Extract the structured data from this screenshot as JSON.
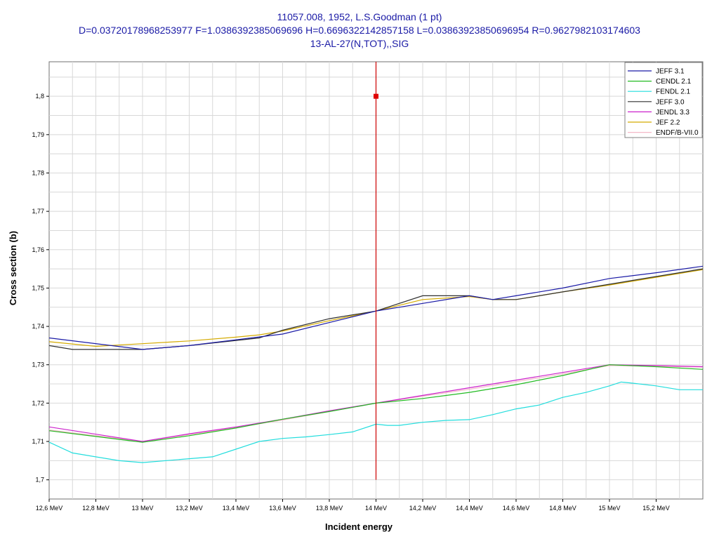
{
  "header": {
    "title": "11057.008, 1952, L.S.Goodman (1 pt)",
    "subtitle": "D=0.03720178968253977 F=1.0386392385069696 H=0.6696322142857158 L=0.03863923850696954 R=0.9627982103174603",
    "reaction": "13-AL-27(N,TOT),,SIG"
  },
  "colors": {
    "title": "#1a1aa6",
    "marker": "#e00000",
    "marker_line": "#cc0000",
    "grid": "#d8d8d8"
  },
  "chart_data": {
    "type": "line",
    "xlabel": "Incident energy",
    "ylabel": "Cross section (b)",
    "xlim": [
      12.6,
      15.4
    ],
    "ylim": [
      1.695,
      1.809
    ],
    "x_ticks": [
      12.6,
      12.8,
      13.0,
      13.2,
      13.4,
      13.6,
      13.8,
      14.0,
      14.2,
      14.4,
      14.6,
      14.8,
      15.0,
      15.2
    ],
    "x_tick_labels": [
      "12,6 MeV",
      "12,8 MeV",
      "13 MeV",
      "13,2 MeV",
      "13,4 MeV",
      "13,6 MeV",
      "13,8 MeV",
      "14 MeV",
      "14,2 MeV",
      "14,4 MeV",
      "14,6 MeV",
      "14,8 MeV",
      "15 MeV",
      "15,2 MeV"
    ],
    "y_ticks": [
      1.7,
      1.71,
      1.72,
      1.73,
      1.74,
      1.75,
      1.76,
      1.77,
      1.78,
      1.79,
      1.8
    ],
    "y_tick_labels": [
      "1,7",
      "1,71",
      "1,72",
      "1,73",
      "1,74",
      "1,75",
      "1,76",
      "1,77",
      "1,78",
      "1,79",
      "1,8"
    ],
    "grid": true,
    "legend_position": "top-right",
    "series": [
      {
        "name": "JEFF 3.1",
        "color": "#1a1aa6",
        "x": [
          12.6,
          13.0,
          13.2,
          13.4,
          13.6,
          13.8,
          14.0,
          14.2,
          14.4,
          14.5,
          14.6,
          14.8,
          15.0,
          15.2,
          15.4
        ],
        "y": [
          1.737,
          1.734,
          1.735,
          1.7365,
          1.738,
          1.741,
          1.744,
          1.746,
          1.748,
          1.747,
          1.748,
          1.75,
          1.7525,
          1.754,
          1.7557
        ]
      },
      {
        "name": "CENDL 2.1",
        "color": "#22bb22",
        "x": [
          12.6,
          13.0,
          13.2,
          13.4,
          13.6,
          13.8,
          14.0,
          14.2,
          14.4,
          14.6,
          14.8,
          15.0,
          15.2,
          15.4
        ],
        "y": [
          1.7128,
          1.7098,
          1.7115,
          1.7135,
          1.7158,
          1.7178,
          1.72,
          1.7212,
          1.7228,
          1.7248,
          1.7272,
          1.73,
          1.7295,
          1.7288
        ]
      },
      {
        "name": "FENDL 2.1",
        "color": "#22dddd",
        "x": [
          12.6,
          12.7,
          12.9,
          13.0,
          13.3,
          13.4,
          13.5,
          13.6,
          13.7,
          13.8,
          13.9,
          14.0,
          14.05,
          14.1,
          14.2,
          14.3,
          14.4,
          14.5,
          14.6,
          14.7,
          14.8,
          14.9,
          15.0,
          15.05,
          15.1,
          15.2,
          15.3,
          15.4
        ],
        "y": [
          1.7098,
          1.707,
          1.705,
          1.7045,
          1.706,
          1.708,
          1.71,
          1.7108,
          1.7112,
          1.7118,
          1.7125,
          1.7145,
          1.7142,
          1.7142,
          1.715,
          1.7155,
          1.7157,
          1.717,
          1.7185,
          1.7195,
          1.7215,
          1.7228,
          1.7245,
          1.7255,
          1.7252,
          1.7245,
          1.7235,
          1.7235
        ]
      },
      {
        "name": "JEFF 3.0",
        "color": "#303030",
        "x": [
          12.6,
          12.7,
          12.8,
          12.9,
          13.0,
          13.2,
          13.5,
          13.6,
          13.8,
          14.0,
          14.2,
          14.4,
          14.5,
          14.6,
          14.8,
          15.0,
          15.2,
          15.4
        ],
        "y": [
          1.735,
          1.734,
          1.734,
          1.734,
          1.734,
          1.735,
          1.737,
          1.739,
          1.742,
          1.744,
          1.748,
          1.748,
          1.747,
          1.747,
          1.749,
          1.751,
          1.753,
          1.755
        ]
      },
      {
        "name": "JENDL 3.3",
        "color": "#cc22cc",
        "x": [
          12.6,
          13.0,
          13.2,
          13.4,
          13.6,
          13.8,
          14.0,
          14.2,
          14.4,
          14.6,
          14.8,
          15.0,
          15.2,
          15.4
        ],
        "y": [
          1.7138,
          1.71,
          1.712,
          1.7138,
          1.7158,
          1.718,
          1.72,
          1.722,
          1.724,
          1.726,
          1.728,
          1.73,
          1.7298,
          1.7295
        ]
      },
      {
        "name": "JEF 2.2",
        "color": "#d4aa00",
        "x": [
          12.6,
          12.8,
          13.0,
          13.2,
          13.4,
          13.5,
          13.6,
          13.8,
          14.0,
          14.2,
          14.4,
          14.5,
          14.6,
          14.8,
          15.0,
          15.2,
          15.4
        ],
        "y": [
          1.736,
          1.7348,
          1.7355,
          1.7362,
          1.7372,
          1.7378,
          1.7388,
          1.7415,
          1.744,
          1.747,
          1.7478,
          1.747,
          1.747,
          1.749,
          1.7508,
          1.7528,
          1.7548
        ]
      },
      {
        "name": "ENDF/B-VII.0",
        "color": "#f4b8c8",
        "x": [
          12.6,
          13.0,
          13.2,
          13.4,
          13.6,
          13.8,
          14.0,
          14.2,
          14.4,
          14.6,
          14.8,
          15.0,
          15.2,
          15.4
        ],
        "y": [
          1.713,
          1.71,
          1.7118,
          1.7136,
          1.7156,
          1.7178,
          1.72,
          1.7218,
          1.7236,
          1.7256,
          1.7276,
          1.7298,
          1.7296,
          1.7294
        ]
      }
    ],
    "experimental_point": {
      "x": 14.0,
      "y": 1.8,
      "error_bar": [
        1.7,
        1.809
      ]
    }
  }
}
